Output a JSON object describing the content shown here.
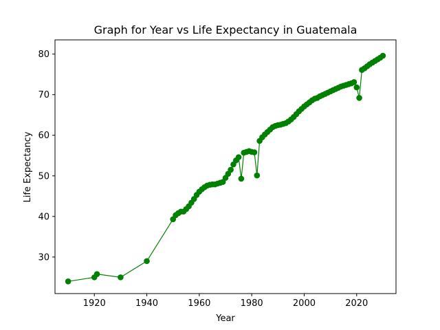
{
  "chart_data": {
    "type": "line",
    "title": "Graph for Year vs Life Expectancy in Guatemala",
    "xlabel": "Year",
    "ylabel": "Life Expectancy",
    "xlim": [
      1905,
      2035
    ],
    "ylim": [
      21,
      83.5
    ],
    "xticks": [
      1920,
      1940,
      1960,
      1980,
      2000,
      2020
    ],
    "yticks": [
      30,
      40,
      50,
      60,
      70,
      80
    ],
    "grid": false,
    "legend": "none",
    "color": "#008000",
    "series": [
      {
        "marker": "circle",
        "x": [
          1910,
          1920,
          1921,
          1930,
          1940,
          1950,
          1951,
          1952,
          1953,
          1954,
          1955,
          1956,
          1957,
          1958,
          1959,
          1960,
          1961,
          1962,
          1963,
          1964,
          1965,
          1966,
          1967,
          1968,
          1969,
          1970,
          1971,
          1972,
          1973,
          1974,
          1975,
          1976,
          1977,
          1978,
          1979,
          1980,
          1981,
          1982,
          1983,
          1984,
          1985,
          1986,
          1987,
          1988,
          1989,
          1990,
          1991,
          1992,
          1993,
          1994,
          1995,
          1996,
          1997,
          1998,
          1999,
          2000,
          2001,
          2002,
          2003,
          2004,
          2005,
          2006,
          2007,
          2008,
          2009,
          2010,
          2011,
          2012,
          2013,
          2014,
          2015,
          2016,
          2017,
          2018,
          2019,
          2020,
          2021,
          2022,
          2023,
          2024,
          2025,
          2026,
          2027,
          2028,
          2029,
          2030
        ],
        "y": [
          24.0,
          25.0,
          25.8,
          25.0,
          29.0,
          39.3,
          40.3,
          40.8,
          41.2,
          41.2,
          41.8,
          42.5,
          43.4,
          44.3,
          45.3,
          46.1,
          46.7,
          47.2,
          47.6,
          47.8,
          47.9,
          47.9,
          48.1,
          48.3,
          48.5,
          49.5,
          50.5,
          51.5,
          52.8,
          53.8,
          54.6,
          49.3,
          55.7,
          55.9,
          56.1,
          55.9,
          55.8,
          50.1,
          58.6,
          59.5,
          60.2,
          60.8,
          61.4,
          62.0,
          62.3,
          62.5,
          62.6,
          62.8,
          63.0,
          63.4,
          63.9,
          64.5,
          65.2,
          65.9,
          66.5,
          67.1,
          67.6,
          68.1,
          68.6,
          69.0,
          69.2,
          69.6,
          69.9,
          70.2,
          70.5,
          70.8,
          71.1,
          71.4,
          71.7,
          72.0,
          72.2,
          72.4,
          72.6,
          72.8,
          73.1,
          71.8,
          69.2,
          76.1,
          76.5,
          77.0,
          77.5,
          77.9,
          78.3,
          78.7,
          79.1,
          79.6
        ]
      }
    ]
  }
}
